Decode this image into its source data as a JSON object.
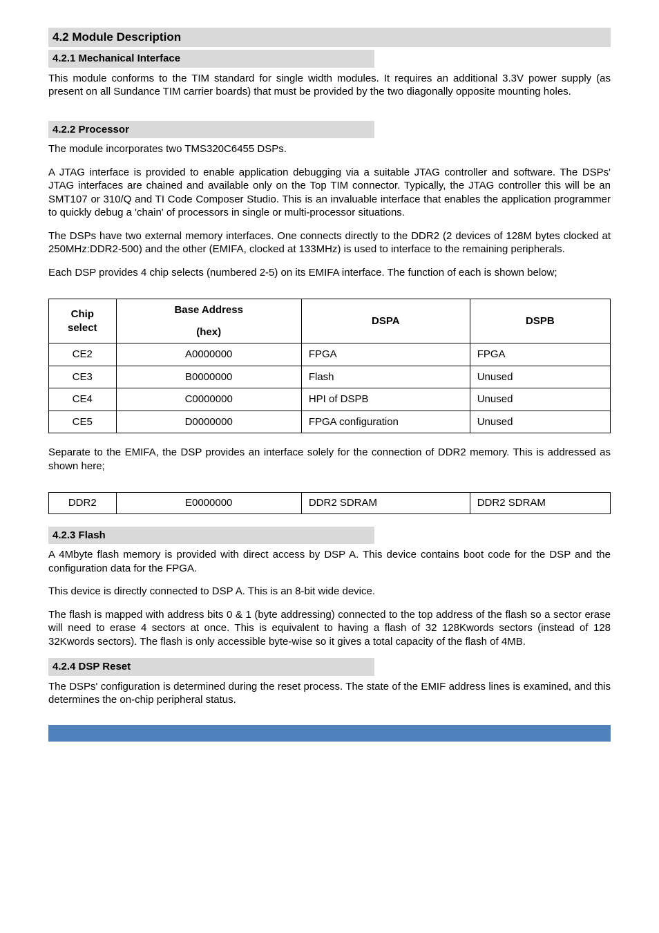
{
  "colors": {
    "heading_bg": "#d9d9d9",
    "text": "#000000",
    "border": "#000000",
    "footer_bar": "#4f81bd",
    "page_bg": "#ffffff"
  },
  "typography": {
    "body_family": "Arial",
    "body_size_pt": 11,
    "h2_size_pt": 13,
    "h3_size_pt": 11
  },
  "h2_1": "4.2   Module Description",
  "h3_1": "4.2.1   Mechanical Interface",
  "p1": "This module conforms to the TIM standard for single width modules. It requires an additional 3.3V power supply (as present on all Sundance TIM carrier boards) that must be provided by the two diagonally opposite mounting holes.",
  "h3_2": "4.2.2   Processor",
  "p2": "The module incorporates two TMS320C6455 DSPs.",
  "p3": "A JTAG interface is provided to enable application debugging via a suitable JTAG controller and software. The DSPs' JTAG interfaces are chained and available only on the Top TIM connector. Typically, the JTAG controller this will be an SMT107 or 310/Q and TI Code Composer Studio. This is an invaluable interface that enables the application programmer to quickly debug a 'chain' of processors in single or multi-processor situations.",
  "p4": "The DSPs have two external memory interfaces. One connects directly to the DDR2  (2 devices of 128M bytes clocked at 250MHz:DDR2-500) and the other (EMIFA, clocked at 133MHz) is used to interface to the remaining peripherals.",
  "p5": "Each DSP provides 4 chip selects (numbered 2-5) on its EMIFA interface. The function of each is shown below;",
  "table1": {
    "type": "table",
    "columns": [
      "Chip select",
      "Base Address\n(hex)",
      "DSPA",
      "DSPB"
    ],
    "col_header_chip": "Chip select",
    "col_header_base_l1": "Base Address",
    "col_header_base_l2": "(hex)",
    "col_header_dspa": "DSPA",
    "col_header_dspb": "DSPB",
    "rows": [
      {
        "chip": "CE2",
        "base": "A0000000",
        "dspa": "FPGA",
        "dspb": "FPGA"
      },
      {
        "chip": "CE3",
        "base": "B0000000",
        "dspa": "Flash",
        "dspb": "Unused"
      },
      {
        "chip": "CE4",
        "base": "C0000000",
        "dspa": "HPI of DSPB",
        "dspb": "Unused"
      },
      {
        "chip": "CE5",
        "base": "D0000000",
        "dspa": "FPGA configuration",
        "dspb": "Unused"
      }
    ]
  },
  "p6": "Separate to the EMIFA, the DSP provides an interface solely for the connection of DDR2 memory. This is addressed as shown here;",
  "table2": {
    "type": "table",
    "row": {
      "c1": "DDR2",
      "c2": "E0000000",
      "c3": "DDR2 SDRAM",
      "c4": "DDR2 SDRAM"
    }
  },
  "h3_3": "4.2.3   Flash",
  "p7": "A 4Mbyte flash memory is provided with direct access by DSP A. This device contains boot code for the DSP and the configuration data for the FPGA.",
  "p8": "This device is directly connected to DSP A. This is an 8-bit wide device.",
  "p9": "The flash is mapped with address bits 0 & 1 (byte addressing) connected to the top address of the flash so a sector erase will need to erase 4 sectors at once. This is equivalent to having a flash of 32 128Kwords sectors (instead of 128 32Kwords sectors). The flash is only accessible byte-wise so it gives a total capacity of the flash of 4MB.",
  "h3_4": "4.2.4   DSP Reset",
  "p10": "The DSPs' configuration is determined during the reset process. The state of the EMIF address lines is examined, and this determines the on-chip peripheral status."
}
